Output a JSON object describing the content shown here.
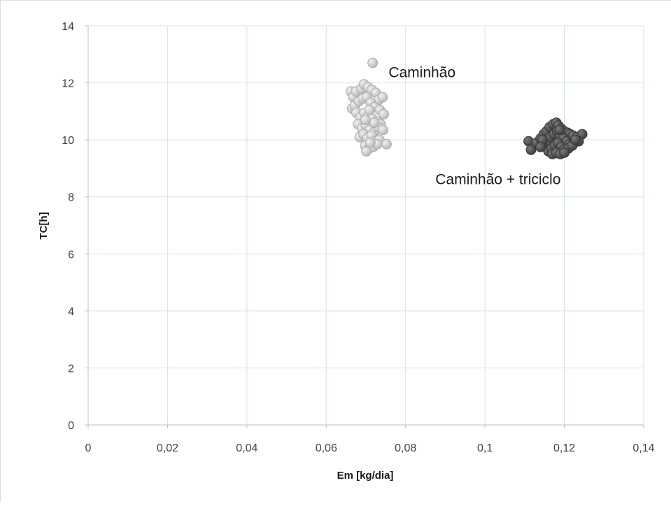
{
  "chart_data": {
    "type": "scatter",
    "title": "",
    "xlabel": "Em [kg/dia]",
    "ylabel": "TC[h]",
    "xlim": [
      0,
      0.14
    ],
    "ylim": [
      0,
      14
    ],
    "x_tick_labels": [
      "0",
      "0,02",
      "0,04",
      "0,06",
      "0,08",
      "0,1",
      "0,12",
      "0,14"
    ],
    "y_tick_labels": [
      "0",
      "2",
      "4",
      "6",
      "8",
      "10",
      "12",
      "14"
    ],
    "grid": true,
    "legend": "none",
    "annotations": [
      {
        "text": "Caminhão",
        "x": 0.0757,
        "y": 12.2
      },
      {
        "text": "Caminhão + triciclo",
        "x": 0.0875,
        "y": 8.45
      }
    ],
    "series": [
      {
        "color": "#c8c8c8",
        "points": [
          [
            0.0717,
            12.7
          ],
          [
            0.0662,
            11.7
          ],
          [
            0.0668,
            11.5
          ],
          [
            0.0675,
            11.7
          ],
          [
            0.0688,
            11.8
          ],
          [
            0.0695,
            11.95
          ],
          [
            0.0705,
            11.85
          ],
          [
            0.0715,
            11.75
          ],
          [
            0.0725,
            11.65
          ],
          [
            0.0732,
            11.4
          ],
          [
            0.0742,
            11.5
          ],
          [
            0.0665,
            11.1
          ],
          [
            0.0672,
            11.2
          ],
          [
            0.0682,
            11.35
          ],
          [
            0.0692,
            11.45
          ],
          [
            0.0702,
            11.5
          ],
          [
            0.0712,
            11.3
          ],
          [
            0.0722,
            11.15
          ],
          [
            0.0735,
            11.05
          ],
          [
            0.0745,
            10.9
          ],
          [
            0.0676,
            10.95
          ],
          [
            0.0686,
            10.8
          ],
          [
            0.0696,
            10.95
          ],
          [
            0.0706,
            10.85
          ],
          [
            0.0716,
            10.75
          ],
          [
            0.0727,
            10.65
          ],
          [
            0.0737,
            10.55
          ],
          [
            0.068,
            10.55
          ],
          [
            0.069,
            10.4
          ],
          [
            0.07,
            10.5
          ],
          [
            0.071,
            10.35
          ],
          [
            0.072,
            10.25
          ],
          [
            0.0731,
            10.45
          ],
          [
            0.0743,
            10.35
          ],
          [
            0.0684,
            10.1
          ],
          [
            0.0694,
            10.2
          ],
          [
            0.0704,
            10.05
          ],
          [
            0.0714,
            10.15
          ],
          [
            0.0724,
            9.95
          ],
          [
            0.0734,
            10.0
          ],
          [
            0.0698,
            9.8
          ],
          [
            0.0708,
            9.7
          ],
          [
            0.0718,
            9.75
          ],
          [
            0.0728,
            9.85
          ],
          [
            0.0752,
            9.85
          ],
          [
            0.0701,
            9.6
          ],
          [
            0.0711,
            9.9
          ],
          [
            0.0721,
            10.6
          ],
          [
            0.0709,
            11.05
          ],
          [
            0.0699,
            10.7
          ]
        ]
      },
      {
        "color": "#4a4a4a",
        "points": [
          [
            0.111,
            9.95
          ],
          [
            0.1116,
            9.65
          ],
          [
            0.113,
            9.9
          ],
          [
            0.114,
            10.05
          ],
          [
            0.1148,
            10.2
          ],
          [
            0.1155,
            10.3
          ],
          [
            0.1163,
            10.45
          ],
          [
            0.1172,
            10.55
          ],
          [
            0.118,
            10.6
          ],
          [
            0.1185,
            10.5
          ],
          [
            0.1192,
            10.4
          ],
          [
            0.12,
            10.3
          ],
          [
            0.1208,
            10.25
          ],
          [
            0.1215,
            10.2
          ],
          [
            0.1222,
            10.15
          ],
          [
            0.1232,
            10.1
          ],
          [
            0.1245,
            10.2
          ],
          [
            0.115,
            9.8
          ],
          [
            0.1158,
            9.95
          ],
          [
            0.1166,
            10.1
          ],
          [
            0.1174,
            10.2
          ],
          [
            0.1182,
            10.3
          ],
          [
            0.119,
            10.15
          ],
          [
            0.1198,
            10.05
          ],
          [
            0.1206,
            9.95
          ],
          [
            0.1214,
            9.85
          ],
          [
            0.1224,
            9.9
          ],
          [
            0.1236,
            9.95
          ],
          [
            0.116,
            9.6
          ],
          [
            0.1168,
            9.7
          ],
          [
            0.1176,
            9.8
          ],
          [
            0.1184,
            9.9
          ],
          [
            0.1192,
            9.75
          ],
          [
            0.12,
            9.65
          ],
          [
            0.121,
            9.7
          ],
          [
            0.122,
            9.8
          ],
          [
            0.117,
            9.5
          ],
          [
            0.118,
            9.55
          ],
          [
            0.119,
            9.5
          ],
          [
            0.12,
            9.55
          ],
          [
            0.1145,
            10.0
          ],
          [
            0.1188,
            10.35
          ],
          [
            0.1228,
            10.0
          ],
          [
            0.114,
            9.75
          ]
        ]
      }
    ]
  }
}
